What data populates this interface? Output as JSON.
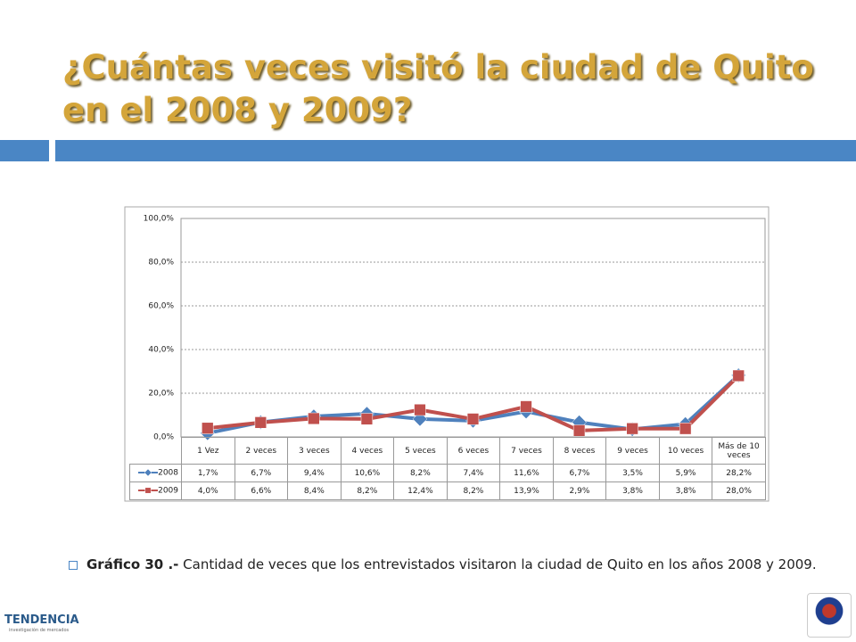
{
  "header": {
    "title": "¿Cuántas veces visitó la ciudad de Quito en el 2008 y 2009?"
  },
  "chart_data": {
    "type": "line",
    "categories": [
      "1 Vez",
      "2 veces",
      "3 veces",
      "4 veces",
      "5 veces",
      "6 veces",
      "7 veces",
      "8 veces",
      "9 veces",
      "10 veces",
      "Más de 10 veces"
    ],
    "series": [
      {
        "name": "2008",
        "color": "#4f81bd",
        "marker": "diamond",
        "values": [
          1.7,
          6.7,
          9.4,
          10.6,
          8.2,
          7.4,
          11.6,
          6.7,
          3.5,
          5.9,
          28.2
        ],
        "value_labels": [
          "1,7%",
          "6,7%",
          "9,4%",
          "10,6%",
          "8,2%",
          "7,4%",
          "11,6%",
          "6,7%",
          "3,5%",
          "5,9%",
          "28,2%"
        ]
      },
      {
        "name": "2009",
        "color": "#c0504d",
        "marker": "square",
        "values": [
          4.0,
          6.6,
          8.4,
          8.2,
          12.4,
          8.2,
          13.9,
          2.9,
          3.8,
          3.8,
          28.0
        ],
        "value_labels": [
          "4,0%",
          "6,6%",
          "8,4%",
          "8,2%",
          "12,4%",
          "8,2%",
          "13,9%",
          "2,9%",
          "3,8%",
          "3,8%",
          "28,0%"
        ]
      }
    ],
    "ylim": [
      0,
      100
    ],
    "yticks": [
      {
        "value": 0,
        "label": "0,0%"
      },
      {
        "value": 20,
        "label": "20,0%"
      },
      {
        "value": 40,
        "label": "40,0%"
      },
      {
        "value": 60,
        "label": "60,0%"
      },
      {
        "value": 80,
        "label": "80,0%"
      },
      {
        "value": 100,
        "label": "100,0%"
      }
    ],
    "grid": true
  },
  "caption": {
    "label": "Gráfico 30 .-",
    "text": "Cantidad de veces que los entrevistados visitaron la ciudad de Quito en los años 2008 y 2009."
  },
  "logo": {
    "name": "TENDENCIA",
    "tagline": "investigación de mercados"
  }
}
